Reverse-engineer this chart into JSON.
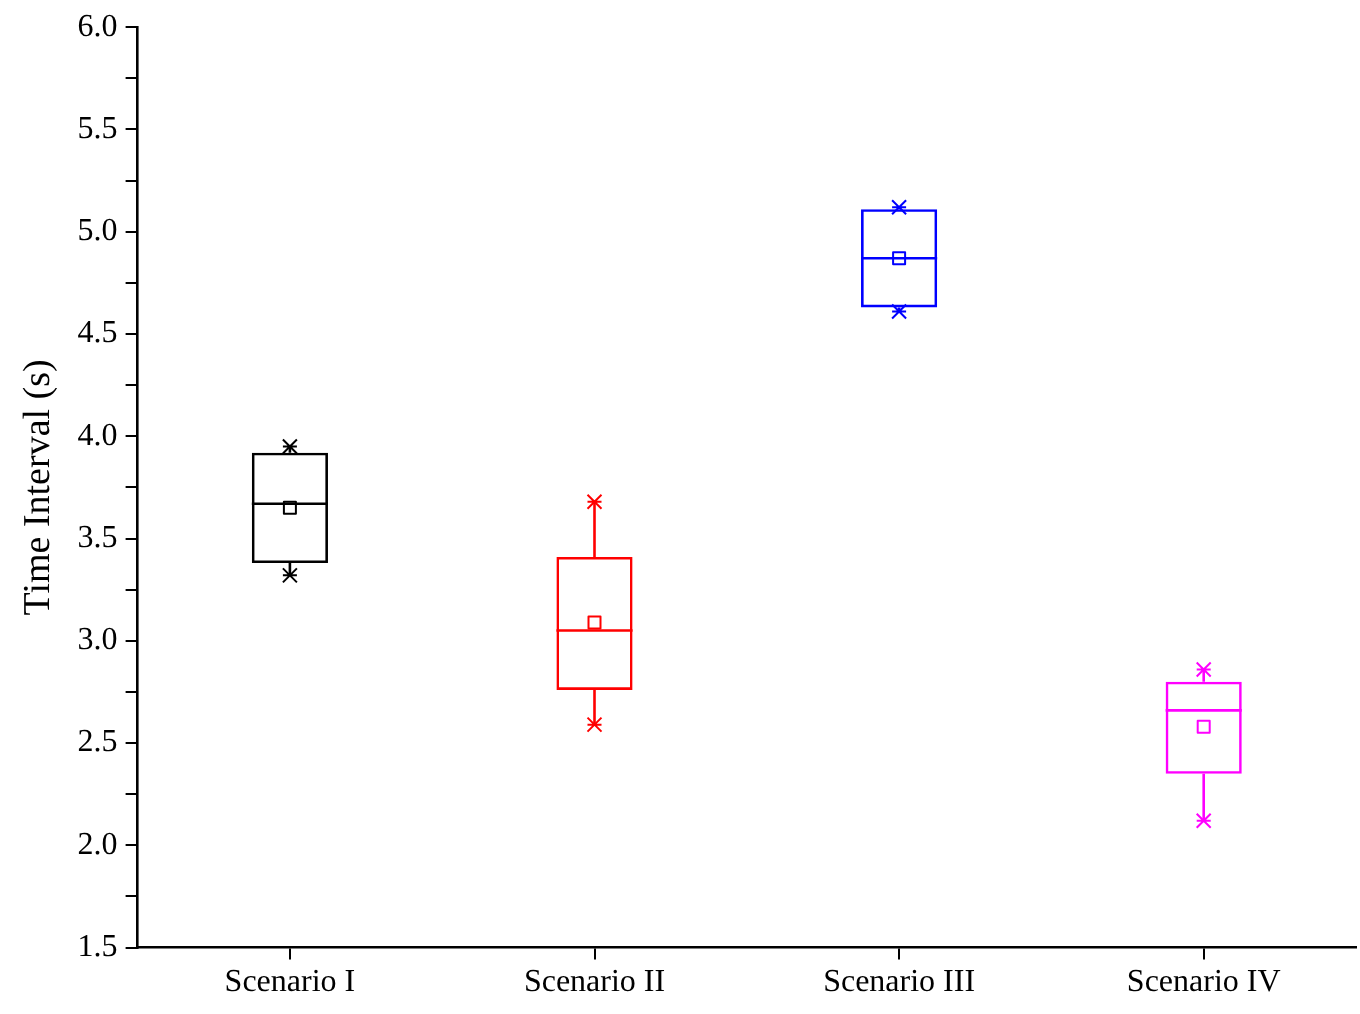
{
  "chart_data": {
    "type": "box",
    "ylabel": "Time Interval (s)",
    "categories": [
      "Scenario I",
      "Scenario II",
      "Scenario III",
      "Scenario IV"
    ],
    "colors": [
      "#000000",
      "#ff0000",
      "#0000ff",
      "#ff00ff"
    ],
    "boxes": [
      {
        "low": 3.32,
        "q1": 3.38,
        "median": 3.67,
        "q3": 3.92,
        "high": 3.95,
        "mean": 3.65
      },
      {
        "low": 2.59,
        "q1": 2.76,
        "median": 3.05,
        "q3": 3.41,
        "high": 3.68,
        "mean": 3.09
      },
      {
        "low": 4.61,
        "q1": 4.63,
        "median": 4.87,
        "q3": 5.11,
        "high": 5.12,
        "mean": 4.87
      },
      {
        "low": 2.12,
        "q1": 2.35,
        "median": 2.66,
        "q3": 2.8,
        "high": 2.86,
        "mean": 2.58
      }
    ],
    "ylim": [
      1.5,
      6.0
    ],
    "yticks": [
      {
        "value": 1.5,
        "label": "1.5"
      },
      {
        "value": 1.75,
        "label": null
      },
      {
        "value": 2.0,
        "label": "2.0"
      },
      {
        "value": 2.25,
        "label": null
      },
      {
        "value": 2.5,
        "label": "2.5"
      },
      {
        "value": 2.75,
        "label": null
      },
      {
        "value": 3.0,
        "label": "3.0"
      },
      {
        "value": 3.25,
        "label": null
      },
      {
        "value": 3.5,
        "label": "3.5"
      },
      {
        "value": 3.75,
        "label": null
      },
      {
        "value": 4.0,
        "label": "4.0"
      },
      {
        "value": 4.25,
        "label": null
      },
      {
        "value": 4.5,
        "label": "4.5"
      },
      {
        "value": 4.75,
        "label": null
      },
      {
        "value": 5.0,
        "label": "5.0"
      },
      {
        "value": 5.25,
        "label": null
      },
      {
        "value": 5.5,
        "label": "5.5"
      },
      {
        "value": 5.75,
        "label": null
      },
      {
        "value": 6.0,
        "label": "6.0"
      }
    ],
    "grid": false,
    "legend": false
  }
}
